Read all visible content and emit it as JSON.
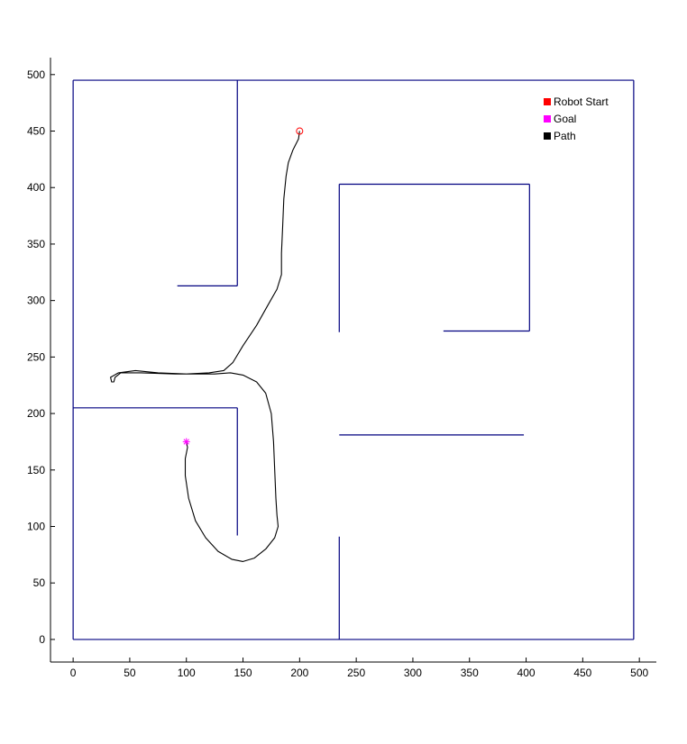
{
  "chart_data": {
    "type": "line",
    "title": "",
    "xlabel": "",
    "ylabel": "",
    "xlim": [
      -20,
      515
    ],
    "ylim": [
      -20,
      515
    ],
    "grid": false,
    "x_ticks": [
      0,
      50,
      100,
      150,
      200,
      250,
      300,
      350,
      400,
      450,
      500
    ],
    "y_ticks": [
      0,
      50,
      100,
      150,
      200,
      250,
      300,
      350,
      400,
      450,
      500
    ],
    "legend": {
      "placement": "top-right",
      "entries": [
        {
          "label": "Robot Start",
          "color": "#ff0000"
        },
        {
          "label": "Goal",
          "color": "#ff00ff"
        },
        {
          "label": "Path",
          "color": "#000000"
        }
      ]
    },
    "walls": {
      "color": "#000080",
      "segments": [
        [
          [
            0,
            0
          ],
          [
            495,
            0
          ]
        ],
        [
          [
            495,
            0
          ],
          [
            495,
            495
          ]
        ],
        [
          [
            495,
            495
          ],
          [
            0,
            495
          ]
        ],
        [
          [
            0,
            495
          ],
          [
            0,
            0
          ]
        ],
        [
          [
            145,
            495
          ],
          [
            145,
            313
          ]
        ],
        [
          [
            92,
            313
          ],
          [
            145,
            313
          ]
        ],
        [
          [
            0,
            205
          ],
          [
            145,
            205
          ]
        ],
        [
          [
            145,
            205
          ],
          [
            145,
            92
          ]
        ],
        [
          [
            235,
            403
          ],
          [
            403,
            403
          ]
        ],
        [
          [
            235,
            403
          ],
          [
            235,
            272
          ]
        ],
        [
          [
            403,
            403
          ],
          [
            403,
            273
          ]
        ],
        [
          [
            327,
            273
          ],
          [
            403,
            273
          ]
        ],
        [
          [
            235,
            181
          ],
          [
            398,
            181
          ]
        ],
        [
          [
            235,
            91
          ],
          [
            235,
            0
          ]
        ]
      ]
    },
    "series": [
      {
        "name": "Path",
        "color": "#000000",
        "points": [
          [
            200,
            450
          ],
          [
            199,
            443
          ],
          [
            194,
            433
          ],
          [
            190,
            422
          ],
          [
            188,
            410
          ],
          [
            186,
            390
          ],
          [
            185,
            365
          ],
          [
            184,
            342
          ],
          [
            184,
            323
          ],
          [
            180,
            310
          ],
          [
            172,
            296
          ],
          [
            162,
            278
          ],
          [
            150,
            260
          ],
          [
            141,
            245
          ],
          [
            133,
            238
          ],
          [
            120,
            236
          ],
          [
            100,
            235
          ],
          [
            75,
            236
          ],
          [
            55,
            238
          ],
          [
            40,
            236
          ],
          [
            33,
            232
          ],
          [
            34,
            228
          ],
          [
            36,
            228
          ],
          [
            37,
            232
          ],
          [
            42,
            236
          ],
          [
            60,
            236
          ],
          [
            90,
            235
          ],
          [
            125,
            235
          ],
          [
            139,
            236
          ],
          [
            150,
            234
          ],
          [
            162,
            228
          ],
          [
            170,
            218
          ],
          [
            175,
            200
          ],
          [
            177,
            175
          ],
          [
            178,
            150
          ],
          [
            179,
            125
          ],
          [
            180,
            110
          ],
          [
            181,
            100
          ],
          [
            178,
            90
          ],
          [
            170,
            80
          ],
          [
            160,
            72
          ],
          [
            150,
            69
          ],
          [
            140,
            71
          ],
          [
            128,
            78
          ],
          [
            117,
            90
          ],
          [
            108,
            105
          ],
          [
            102,
            125
          ],
          [
            99,
            145
          ],
          [
            99,
            160
          ],
          [
            101,
            170
          ],
          [
            100,
            175
          ]
        ]
      }
    ],
    "markers": [
      {
        "name": "Robot Start",
        "x": 200,
        "y": 450,
        "shape": "circle",
        "color": "#ff0000"
      },
      {
        "name": "Goal",
        "x": 100,
        "y": 175,
        "shape": "asterisk",
        "color": "#ff00ff"
      }
    ]
  }
}
